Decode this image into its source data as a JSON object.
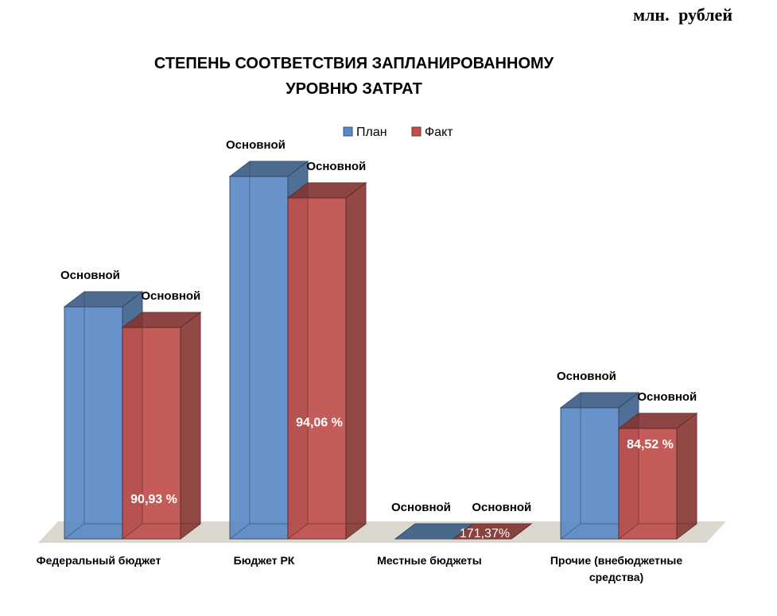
{
  "unit_label": "млн.  рублей",
  "chart_data": {
    "type": "bar",
    "title": [
      "СТЕПЕНЬ СООТВЕТСТВИЯ ЗАПЛАНИРОВАННОМУ",
      "УРОВНЮ ЗАТРАТ"
    ],
    "categories": [
      "Федеральный бюджет",
      "Бюджет РК",
      "Местные бюджеты",
      "Прочие (внебюджетные средства)"
    ],
    "series": [
      {
        "name": "План",
        "values": [
          292,
          456,
          0,
          165
        ],
        "color": "#5b8ac6",
        "labels": [
          "Основной",
          "Основной",
          "Основной",
          "Основной"
        ]
      },
      {
        "name": "Факт",
        "values": [
          266,
          429,
          0,
          139
        ],
        "color": "#c0504d",
        "labels": [
          "Основной",
          "Основной",
          "Основной",
          "Основной"
        ]
      }
    ],
    "percent_labels": [
      "90,93 %",
      "94,06 %",
      "171,37%",
      "84,52 %"
    ],
    "grid": false,
    "legend": "top-center",
    "three_d": true
  }
}
